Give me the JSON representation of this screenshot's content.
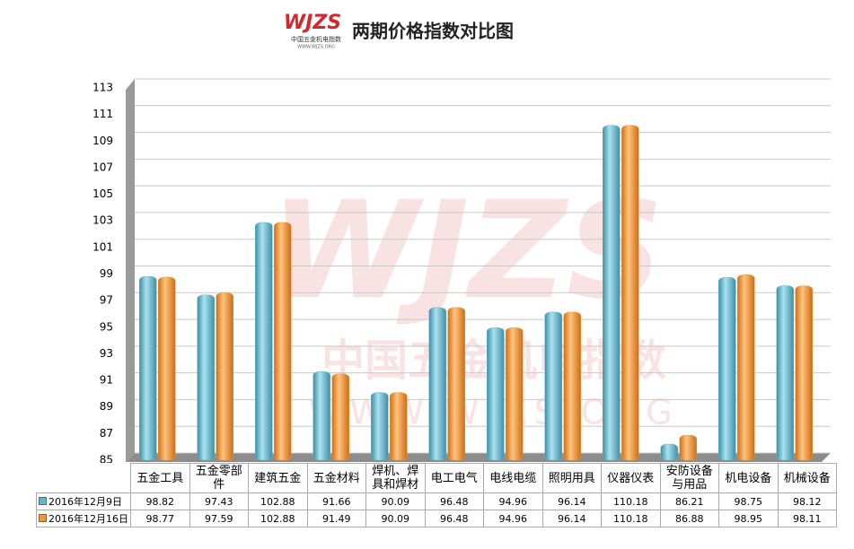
{
  "logo": {
    "mark": "WJZS",
    "name": "中国五金机电指数",
    "url": "WWW.WJZS.ORG"
  },
  "chart_data": {
    "type": "bar",
    "title": "两期价格指数对比图",
    "categories": [
      "五金工具",
      "五金零部件",
      "建筑五金",
      "五金材料",
      "焊机、焊具和焊材",
      "电工电气",
      "电线电缆",
      "照明用具",
      "仪器仪表",
      "安防设备与用品",
      "机电设备",
      "机械设备"
    ],
    "series": [
      {
        "name": "2016年12月9日",
        "color": "#5bb8cf",
        "values": [
          98.82,
          97.43,
          102.88,
          91.66,
          90.09,
          96.48,
          94.96,
          96.14,
          110.18,
          86.21,
          98.75,
          98.12
        ]
      },
      {
        "name": "2016年12月16日",
        "color": "#f3963a",
        "values": [
          98.77,
          97.59,
          102.88,
          91.49,
          90.09,
          96.48,
          94.96,
          96.14,
          110.18,
          86.88,
          98.95,
          98.11
        ]
      }
    ],
    "ylim": [
      85,
      113
    ],
    "yticks": [
      85,
      87,
      89,
      91,
      93,
      95,
      97,
      99,
      101,
      103,
      105,
      107,
      109,
      111,
      113
    ],
    "grid": true
  }
}
